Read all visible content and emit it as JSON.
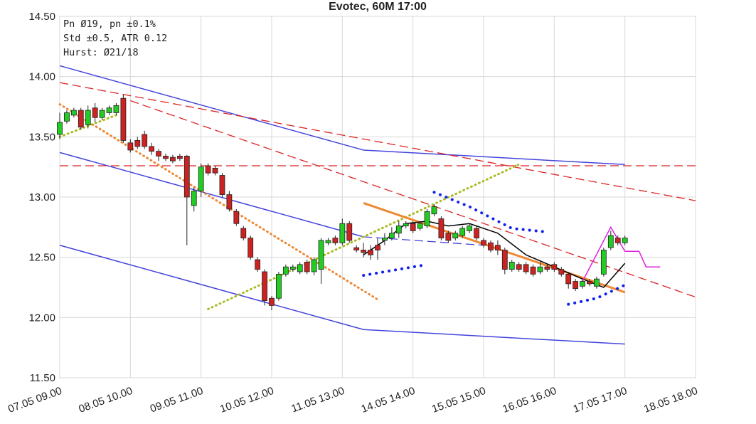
{
  "chart_data": {
    "type": "candlestick",
    "title": "Evotec, 60M 17:00",
    "info_lines": [
      "Pn  Ø19, pn ±0.1%",
      "Std ±0.5, ATR 0.12",
      "Hurst: Ø21/18"
    ],
    "x": [
      0,
      1,
      2,
      3,
      4,
      5,
      6,
      7,
      8,
      9,
      10,
      11,
      12,
      13,
      14,
      15,
      16,
      17,
      18,
      19,
      20,
      21,
      22,
      23,
      24,
      25,
      26,
      27,
      28,
      29,
      30,
      31,
      32,
      33,
      34,
      35,
      36,
      37,
      38,
      39,
      40,
      41,
      42,
      43,
      44,
      45,
      46,
      47,
      48,
      49,
      50,
      51,
      52,
      53,
      54,
      55,
      56,
      57,
      58,
      59,
      60,
      61,
      62,
      63,
      64,
      65,
      66,
      67,
      68,
      69,
      70,
      71,
      72,
      73,
      74,
      75,
      76,
      77,
      78,
      79,
      80
    ],
    "open": [
      13.52,
      13.63,
      13.68,
      13.72,
      13.6,
      13.74,
      13.66,
      13.7,
      13.7,
      13.82,
      13.45,
      13.47,
      13.52,
      13.42,
      13.38,
      13.34,
      13.33,
      13.34,
      13.34,
      12.93,
      13.05,
      13.26,
      13.24,
      13.18,
      13.02,
      12.88,
      12.74,
      12.66,
      12.48,
      12.38,
      12.16,
      12.16,
      12.36,
      12.4,
      12.38,
      12.46,
      12.38,
      12.4,
      12.62,
      12.66,
      12.62,
      12.78,
      12.58,
      12.56,
      12.56,
      12.6,
      12.64,
      12.66,
      12.7,
      12.76,
      12.78,
      12.74,
      12.76,
      12.86,
      12.82,
      12.7,
      12.66,
      12.68,
      12.72,
      12.74,
      12.64,
      12.62,
      12.6,
      12.56,
      12.4,
      12.44,
      12.44,
      12.42,
      12.38,
      12.42,
      12.44,
      12.4,
      12.36,
      12.3,
      12.26,
      12.3,
      12.26,
      12.36,
      12.58,
      12.66,
      12.62
    ],
    "high": [
      13.7,
      13.72,
      13.74,
      13.74,
      13.76,
      13.78,
      13.74,
      13.76,
      13.78,
      13.85,
      13.48,
      13.5,
      13.55,
      13.45,
      13.4,
      13.36,
      13.35,
      13.36,
      13.35,
      13.08,
      13.28,
      13.28,
      13.26,
      13.2,
      13.05,
      12.9,
      12.76,
      12.68,
      12.5,
      12.4,
      12.18,
      12.38,
      12.44,
      12.44,
      12.46,
      12.48,
      12.5,
      12.66,
      12.66,
      12.68,
      12.82,
      12.8,
      12.6,
      12.62,
      12.6,
      12.66,
      12.7,
      12.75,
      12.8,
      12.8,
      12.8,
      12.8,
      12.9,
      12.94,
      12.84,
      12.72,
      12.72,
      12.76,
      12.78,
      12.76,
      12.66,
      12.64,
      12.64,
      12.58,
      12.48,
      12.46,
      12.46,
      12.44,
      12.46,
      12.44,
      12.46,
      12.42,
      12.38,
      12.32,
      12.32,
      12.32,
      12.34,
      12.58,
      12.72,
      12.68,
      12.68
    ],
    "low": [
      13.48,
      13.61,
      13.66,
      13.56,
      13.57,
      13.62,
      13.64,
      13.68,
      13.68,
      13.45,
      13.37,
      13.4,
      13.4,
      13.35,
      13.3,
      13.3,
      13.28,
      13.3,
      12.6,
      12.88,
      13.0,
      13.18,
      13.18,
      13.0,
      12.88,
      12.76,
      12.64,
      12.48,
      12.38,
      12.1,
      12.06,
      12.14,
      12.34,
      12.38,
      12.36,
      12.36,
      12.35,
      12.28,
      12.6,
      12.6,
      12.6,
      12.62,
      12.54,
      12.5,
      12.48,
      12.48,
      12.6,
      12.64,
      12.66,
      12.74,
      12.7,
      12.72,
      12.74,
      12.84,
      12.64,
      12.62,
      12.64,
      12.66,
      12.7,
      12.64,
      12.58,
      12.54,
      12.52,
      12.36,
      12.38,
      12.38,
      12.36,
      12.34,
      12.36,
      12.38,
      12.38,
      12.34,
      12.24,
      12.22,
      12.24,
      12.26,
      12.24,
      12.34,
      12.56,
      12.6,
      12.6
    ],
    "close": [
      13.62,
      13.7,
      13.72,
      13.58,
      13.72,
      13.66,
      13.72,
      13.74,
      13.76,
      13.47,
      13.39,
      13.42,
      13.42,
      13.38,
      13.34,
      13.32,
      13.3,
      13.32,
      13.0,
      13.05,
      13.25,
      13.2,
      13.2,
      13.02,
      12.9,
      12.78,
      12.66,
      12.5,
      12.4,
      12.14,
      12.1,
      12.36,
      12.42,
      12.42,
      12.44,
      12.38,
      12.48,
      12.64,
      12.64,
      12.62,
      12.78,
      12.64,
      12.56,
      12.54,
      12.52,
      12.56,
      12.66,
      12.7,
      12.76,
      12.78,
      12.72,
      12.78,
      12.88,
      12.92,
      12.66,
      12.64,
      12.7,
      12.74,
      12.76,
      12.66,
      12.6,
      12.56,
      12.56,
      12.4,
      12.46,
      12.4,
      12.38,
      12.36,
      12.42,
      12.4,
      12.4,
      12.36,
      12.28,
      12.24,
      12.3,
      12.28,
      12.32,
      12.56,
      12.68,
      12.62,
      12.66
    ],
    "up_color": "#22cc22",
    "down_color": "#cc2222",
    "overlays": [
      {
        "color": "#4444dd",
        "style": "solid",
        "points": [
          [
            0,
            14.09
          ],
          [
            43,
            13.39
          ],
          [
            80,
            13.27
          ]
        ]
      },
      {
        "color": "#4444dd",
        "style": "solid",
        "points": [
          [
            0,
            13.37
          ],
          [
            43,
            12.67
          ]
        ]
      },
      {
        "color": "#4444dd",
        "style": "dashed",
        "points": [
          [
            43,
            12.67
          ],
          [
            60,
            12.6
          ]
        ]
      },
      {
        "color": "#4444dd",
        "style": "solid",
        "points": [
          [
            0,
            12.6
          ],
          [
            43,
            11.9
          ],
          [
            80,
            11.78
          ]
        ]
      },
      {
        "color": "#dd2222",
        "style": "dashed",
        "points": [
          [
            0,
            13.26
          ],
          [
            90,
            13.26
          ]
        ]
      },
      {
        "color": "#dd2222",
        "style": "dashed",
        "points": [
          [
            0,
            13.95
          ],
          [
            90,
            12.97
          ]
        ]
      },
      {
        "color": "#dd2222",
        "style": "dashed",
        "points": [
          [
            10,
            13.8
          ],
          [
            90,
            12.17
          ]
        ]
      },
      {
        "color": "#ee8833",
        "style": "dotted",
        "points": [
          [
            0,
            13.77
          ],
          [
            45,
            12.15
          ]
        ]
      },
      {
        "color": "#aabb22",
        "style": "dotted",
        "points": [
          [
            21,
            12.07
          ],
          [
            65,
            13.27
          ]
        ]
      },
      {
        "color": "#aabb22",
        "style": "dotted",
        "points": [
          [
            0,
            13.5
          ],
          [
            8,
            13.68
          ]
        ]
      },
      {
        "color": "#ee8833",
        "style": "thick",
        "points": [
          [
            43,
            12.95
          ],
          [
            80,
            12.21
          ]
        ]
      },
      {
        "color": "#000000",
        "style": "solid",
        "points": [
          [
            43,
            12.52
          ],
          [
            46,
            12.64
          ],
          [
            49,
            12.78
          ],
          [
            52,
            12.8
          ],
          [
            55,
            12.76
          ],
          [
            58,
            12.78
          ],
          [
            62,
            12.7
          ],
          [
            66,
            12.52
          ],
          [
            70,
            12.42
          ],
          [
            74,
            12.32
          ],
          [
            77,
            12.25
          ],
          [
            80,
            12.45
          ]
        ]
      },
      {
        "color": "#1122ee",
        "style": "dots",
        "points": [
          [
            43,
            12.35
          ],
          [
            52,
            12.44
          ]
        ]
      },
      {
        "color": "#1122ee",
        "style": "dots",
        "points": [
          [
            53,
            13.04
          ],
          [
            58,
            12.92
          ],
          [
            64,
            12.74
          ],
          [
            69,
            12.71
          ]
        ]
      },
      {
        "color": "#1122ee",
        "style": "dots",
        "points": [
          [
            72,
            12.11
          ],
          [
            76,
            12.16
          ],
          [
            80,
            12.27
          ]
        ]
      },
      {
        "color": "#dd22dd",
        "style": "solid",
        "points": [
          [
            74,
            12.3
          ],
          [
            78,
            12.75
          ],
          [
            80,
            12.55
          ],
          [
            82,
            12.55
          ],
          [
            83,
            12.42
          ],
          [
            85,
            12.42
          ]
        ]
      }
    ],
    "xlim": [
      0,
      90
    ],
    "xticks": [
      {
        "value": 0,
        "label": "07.05 09.00"
      },
      {
        "value": 10,
        "label": "08.05 10.00"
      },
      {
        "value": 20,
        "label": "09.05 11.00"
      },
      {
        "value": 30,
        "label": "10.05 12.00"
      },
      {
        "value": 40,
        "label": "11.05 13.00"
      },
      {
        "value": 50,
        "label": "14.05 14.00"
      },
      {
        "value": 60,
        "label": "15.05 15.00"
      },
      {
        "value": 70,
        "label": "16.05 16.00"
      },
      {
        "value": 80,
        "label": "17.05 17.00"
      },
      {
        "value": 90,
        "label": "18.05 18.00"
      }
    ],
    "ylim": [
      11.5,
      14.5
    ],
    "yticks": [
      {
        "value": 11.5,
        "label": "11.50"
      },
      {
        "value": 12,
        "label": "12.00"
      },
      {
        "value": 12.5,
        "label": "12.50"
      },
      {
        "value": 13,
        "label": "13.00"
      },
      {
        "value": 13.5,
        "label": "13.50"
      },
      {
        "value": 14,
        "label": "14.00"
      },
      {
        "value": 14.5,
        "label": "14.50"
      }
    ],
    "grid": true
  }
}
